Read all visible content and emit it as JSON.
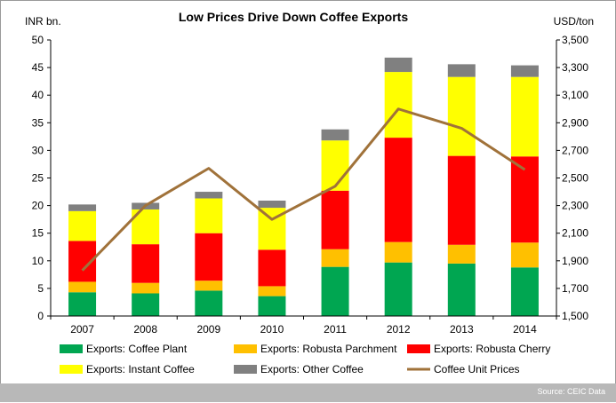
{
  "chart_data": {
    "type": "bar",
    "title": "Low Prices Drive Down Coffee Exports",
    "ylabel": "INR bn.",
    "y2label": "USD/ton",
    "ylim": [
      0,
      50
    ],
    "y2lim": [
      1500,
      3500
    ],
    "yticks": [
      "0",
      "5",
      "10",
      "15",
      "20",
      "25",
      "30",
      "35",
      "40",
      "45",
      "50"
    ],
    "y2ticks": [
      "1,500",
      "1,700",
      "1,900",
      "2,100",
      "2,300",
      "2,500",
      "2,700",
      "2,900",
      "3,100",
      "3,300",
      "3,500"
    ],
    "categories": [
      "2007",
      "2008",
      "2009",
      "2010",
      "2011",
      "2012",
      "2013",
      "2014"
    ],
    "stacked": true,
    "grid": false,
    "legend_position": "bottom",
    "series": [
      {
        "name": "Exports: Coffee Plant",
        "color": "#00a651",
        "values": [
          4.3,
          4.1,
          4.6,
          3.6,
          8.9,
          9.7,
          9.5,
          8.8
        ]
      },
      {
        "name": "Exports: Robusta Parchment",
        "color": "#ffc000",
        "values": [
          1.9,
          1.9,
          1.8,
          1.8,
          3.2,
          3.7,
          3.4,
          4.5
        ]
      },
      {
        "name": "Exports: Robusta Cherry",
        "color": "#ff0000",
        "values": [
          7.4,
          7.0,
          8.6,
          6.6,
          10.6,
          18.9,
          16.1,
          15.6
        ]
      },
      {
        "name": "Exports: Instant Coffee",
        "color": "#ffff00",
        "values": [
          5.4,
          6.3,
          6.3,
          7.6,
          9.1,
          11.9,
          14.3,
          14.4
        ]
      },
      {
        "name": "Exports: Other Coffee",
        "color": "#808080",
        "values": [
          1.2,
          1.2,
          1.2,
          1.3,
          2.0,
          2.6,
          2.3,
          2.1
        ]
      }
    ],
    "line_series": {
      "name": "Coffee Unit Prices",
      "color": "#a0723a",
      "axis": "right",
      "values": [
        1830,
        2300,
        2570,
        2200,
        2440,
        3000,
        2860,
        2560
      ]
    }
  },
  "source": "Source: CEIC Data"
}
